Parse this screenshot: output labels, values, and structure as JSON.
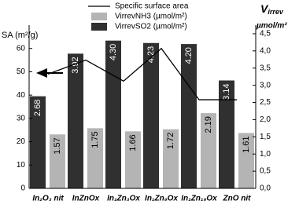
{
  "chart_data": {
    "type": "bar",
    "ylabel": "SA (m²/g)",
    "y2label_symbol": "V",
    "y2label_subscript": "irrev",
    "y2label_unit": "µmol/m²",
    "categories": [
      "In₂O₃ nit",
      "InZnOx",
      "In₁Zn₃Ox",
      "In₁Zn₉Ox",
      "In₁Zn₁₉Ox",
      "ZnO nit"
    ],
    "series": [
      {
        "name": "Specific surface area",
        "type": "line",
        "color": "#000000",
        "values": [
          49,
          55,
          46,
          60,
          38,
          38
        ]
      },
      {
        "name": "VirrevNH3 (µmol/m²)",
        "type": "bar",
        "axis": "y2",
        "color": "#b4b4b4",
        "values": [
          1.57,
          1.75,
          1.66,
          1.72,
          2.19,
          1.61
        ],
        "value_labels": [
          "1.57",
          "1.75",
          "1.66",
          "1.72",
          "2.19",
          "1.61"
        ]
      },
      {
        "name": "VirrevSO2 (µmol/m²)",
        "type": "bar",
        "axis": "y2",
        "color": "#303030",
        "values": [
          2.68,
          3.92,
          4.3,
          4.23,
          4.2,
          3.14
        ],
        "value_labels": [
          "2.68",
          "3.92",
          "4.30",
          "4.23",
          "4.20",
          "3.14"
        ]
      }
    ],
    "ylim": [
      0,
      70
    ],
    "yticks": [
      0,
      10,
      20,
      30,
      40,
      50,
      60
    ],
    "y2lim": [
      0,
      4.75
    ],
    "y2ticks": [
      {
        "value": 0,
        "label": "0,0"
      },
      {
        "value": 0.5,
        "label": "0,5"
      },
      {
        "value": 1,
        "label": "1,0"
      },
      {
        "value": 1.5,
        "label": "1,5"
      },
      {
        "value": 2,
        "label": "2,0"
      },
      {
        "value": 2.5,
        "label": "2,5"
      },
      {
        "value": 3,
        "label": "3,0"
      },
      {
        "value": 3.5,
        "label": "3,5"
      },
      {
        "value": 4,
        "label": "4,0"
      },
      {
        "value": 4.5,
        "label": "4,5"
      }
    ]
  }
}
